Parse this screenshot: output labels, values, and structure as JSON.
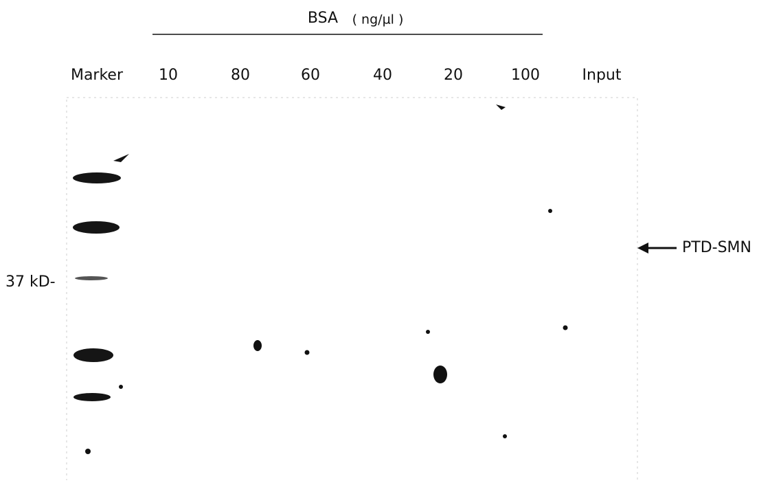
{
  "header": {
    "title": "BSA",
    "unit": "( ng/µl )"
  },
  "lanes": [
    "Marker",
    "10",
    "80",
    "60",
    "40",
    "20",
    "100",
    "Input"
  ],
  "marker_label": "37 kD-",
  "annotation": "PTD-SMN"
}
